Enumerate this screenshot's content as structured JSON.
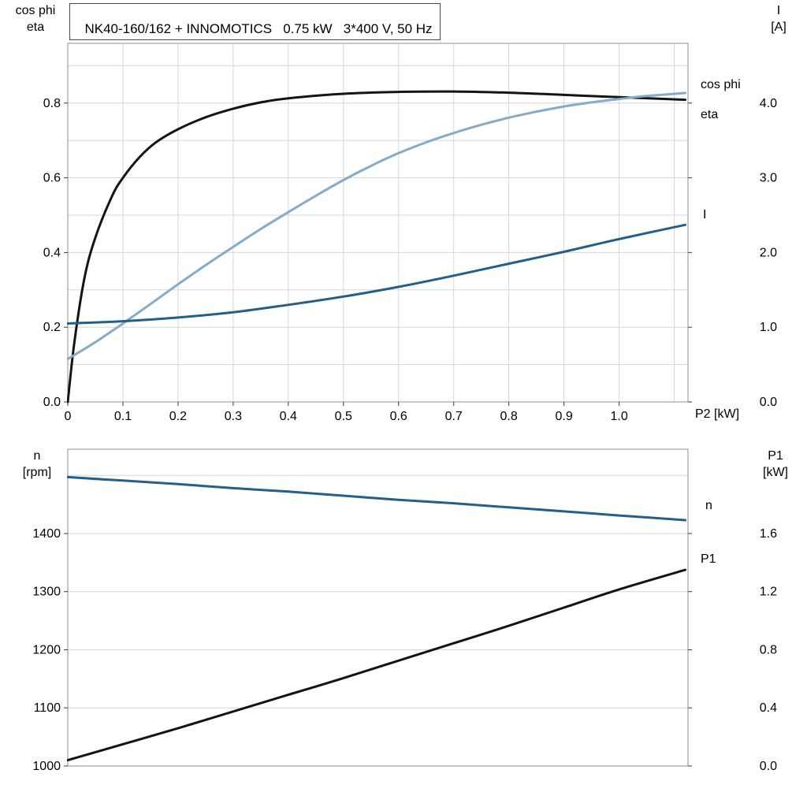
{
  "title": "NK40-160/162 + INNOMOTICS   0.75 kW   3*400 V, 50 Hz",
  "colors": {
    "background": "#ffffff",
    "grid": "#d7d7d7",
    "border": "#8f8f8f",
    "tick": "#3c3c3c",
    "black_curve": "#141414",
    "light_blue": "#85abc9",
    "dark_blue": "#255e88"
  },
  "chart_data": [
    {
      "id": "top",
      "type": "line",
      "x_axis": {
        "label": "P2 [kW]",
        "min": 0,
        "max": 1.125,
        "tick_values": [
          0,
          0.1,
          0.2,
          0.3,
          0.4,
          0.5,
          0.6,
          0.7,
          0.8,
          0.9,
          1.0
        ],
        "tick_labels": [
          "0",
          "0.1",
          "0.2",
          "0.3",
          "0.4",
          "0.5",
          "0.6",
          "0.7",
          "0.8",
          "0.9",
          "1.0"
        ],
        "grid_values": [
          0.1,
          0.2,
          0.3,
          0.4,
          0.5,
          0.6,
          0.7,
          0.8,
          0.9,
          1.0,
          1.1
        ]
      },
      "left_axis": {
        "title_lines": [
          "cos phi",
          "eta"
        ],
        "min": 0,
        "max": 0.96,
        "tick_values": [
          0,
          0.2,
          0.4,
          0.6,
          0.8
        ],
        "tick_labels": [
          "0.0",
          "0.2",
          "0.4",
          "0.6",
          "0.8"
        ],
        "grid_values": [
          0.1,
          0.2,
          0.3,
          0.4,
          0.5,
          0.6,
          0.7,
          0.8,
          0.9
        ]
      },
      "right_axis": {
        "title_lines": [
          "I",
          "[A]"
        ],
        "min": 0,
        "max": 4.8,
        "tick_values": [
          0,
          1,
          2,
          3,
          4
        ],
        "tick_labels": [
          "0.0",
          "1.0",
          "2.0",
          "3.0",
          "4.0"
        ]
      },
      "series": [
        {
          "name": "eta",
          "axis": "left",
          "color": "#141414",
          "x": [
            0,
            0.012,
            0.03,
            0.05,
            0.08,
            0.1,
            0.13,
            0.16,
            0.2,
            0.25,
            0.3,
            0.35,
            0.4,
            0.5,
            0.6,
            0.7,
            0.8,
            0.9,
            1.0,
            1.12
          ],
          "y": [
            0,
            0.16,
            0.33,
            0.44,
            0.55,
            0.6,
            0.655,
            0.695,
            0.73,
            0.762,
            0.785,
            0.802,
            0.813,
            0.825,
            0.83,
            0.831,
            0.828,
            0.822,
            0.816,
            0.809
          ]
        },
        {
          "name": "cos phi",
          "axis": "left",
          "color": "#85abc9",
          "x": [
            0,
            0.05,
            0.1,
            0.15,
            0.2,
            0.25,
            0.3,
            0.35,
            0.4,
            0.45,
            0.5,
            0.55,
            0.6,
            0.65,
            0.7,
            0.75,
            0.8,
            0.85,
            0.9,
            0.95,
            1.0,
            1.05,
            1.12
          ],
          "y": [
            0.115,
            0.16,
            0.21,
            0.262,
            0.315,
            0.366,
            0.415,
            0.463,
            0.508,
            0.552,
            0.594,
            0.632,
            0.666,
            0.695,
            0.72,
            0.742,
            0.761,
            0.777,
            0.791,
            0.802,
            0.811,
            0.819,
            0.827
          ]
        },
        {
          "name": "I",
          "axis": "right",
          "color": "#255e88",
          "x": [
            0,
            0.1,
            0.2,
            0.3,
            0.4,
            0.5,
            0.6,
            0.7,
            0.8,
            0.9,
            1.0,
            1.12
          ],
          "y": [
            1.05,
            1.08,
            1.13,
            1.2,
            1.3,
            1.41,
            1.54,
            1.69,
            1.85,
            2.01,
            2.18,
            2.37
          ]
        }
      ]
    },
    {
      "id": "bottom",
      "type": "line",
      "x_axis": {
        "label": "",
        "min": 0,
        "max": 1.125,
        "tick_values": [],
        "tick_labels": [],
        "grid_values": []
      },
      "left_axis": {
        "title_lines": [
          "n",
          "[rpm]"
        ],
        "min": 1000,
        "max": 1545,
        "tick_values": [
          1000,
          1100,
          1200,
          1300,
          1400
        ],
        "tick_labels": [
          "1000",
          "1100",
          "1200",
          "1300",
          "1400"
        ],
        "grid_values": [
          1100,
          1200,
          1300,
          1400,
          1500
        ]
      },
      "right_axis": {
        "title_lines": [
          "P1",
          "[kW]"
        ],
        "min": 0,
        "max": 2.18,
        "tick_values": [
          0,
          0.4,
          0.8,
          1.2,
          1.6
        ],
        "tick_labels": [
          "0.0",
          "0.4",
          "0.8",
          "1.2",
          "1.6"
        ]
      },
      "series": [
        {
          "name": "n",
          "axis": "left",
          "color": "#255e88",
          "x": [
            0,
            0.1,
            0.2,
            0.3,
            0.4,
            0.5,
            0.6,
            0.7,
            0.8,
            0.9,
            1.0,
            1.12
          ],
          "y": [
            1497,
            1491,
            1485,
            1478,
            1472,
            1465,
            1458,
            1452,
            1445,
            1438,
            1431,
            1423
          ]
        },
        {
          "name": "P1",
          "axis": "right",
          "color": "#141414",
          "x": [
            0,
            0.1,
            0.2,
            0.3,
            0.4,
            0.5,
            0.6,
            0.7,
            0.8,
            0.9,
            1.0,
            1.12
          ],
          "y": [
            0.04,
            0.15,
            0.26,
            0.375,
            0.49,
            0.605,
            0.725,
            0.845,
            0.965,
            1.09,
            1.215,
            1.35
          ]
        }
      ]
    }
  ]
}
